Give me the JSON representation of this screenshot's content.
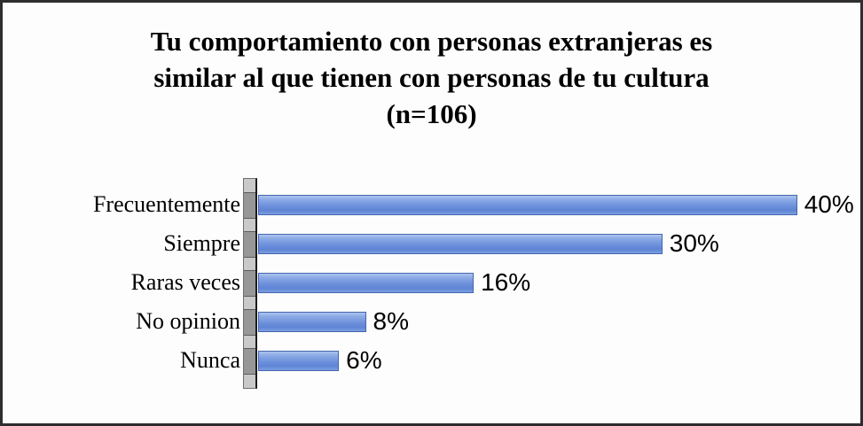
{
  "title": {
    "line1": "Tu comportamiento con personas extranjeras es",
    "line2": "similar al que tienen con personas de tu cultura",
    "line3": "(n=106)"
  },
  "chart_data": {
    "type": "bar",
    "orientation": "horizontal",
    "title": "Tu comportamiento con personas extranjeras es similar al que tienen con personas de tu cultura (n=106)",
    "categories": [
      "Frecuentemente",
      "Siempre",
      "Raras veces",
      "No opinion",
      "Nunca"
    ],
    "values": [
      40,
      30,
      16,
      8,
      6
    ],
    "value_labels": [
      "40%",
      "30%",
      "16%",
      "8%",
      "6%"
    ],
    "xlabel": "",
    "ylabel": "",
    "xlim": [
      0,
      44
    ],
    "grid": false,
    "legend": false,
    "bar_color": "#6d90dc",
    "axis_wall_color": "#c9c9c9"
  }
}
